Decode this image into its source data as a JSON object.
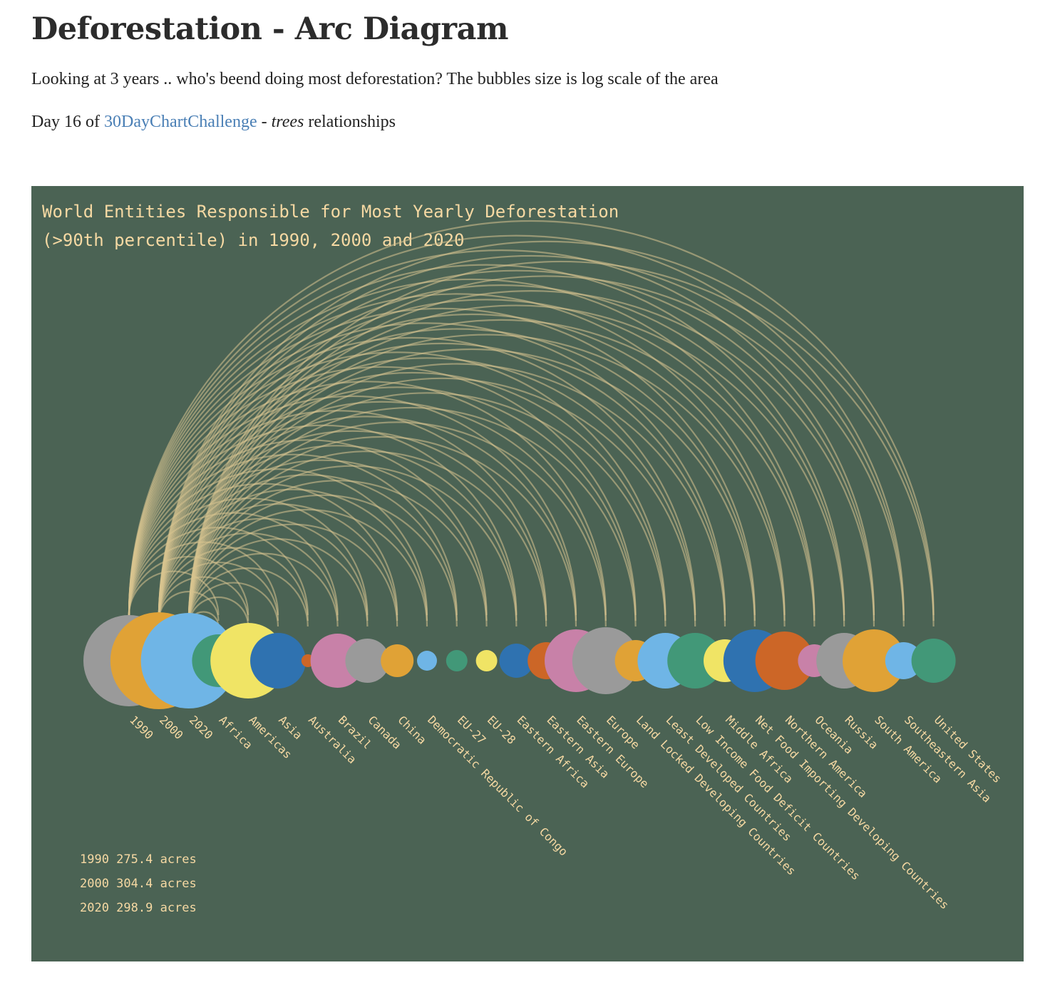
{
  "page": {
    "title": "Deforestation - Arc Diagram",
    "description": "Looking at 3 years .. who's beend doing most deforestation? The bubbles size is log scale of the area",
    "challenge_prefix": "Day 16 of ",
    "challenge_link": "30DayChartChallenge",
    "challenge_dash": " - ",
    "challenge_italic": "trees",
    "challenge_suffix": " relationships"
  },
  "colors": {
    "panel_bg": "#4b6354",
    "label": "#f6d9a3",
    "arc": "#d9c48f",
    "link": "#4a7fb5"
  },
  "chart_data": {
    "type": "arc",
    "title_line1": "World Entities Responsible for Most Yearly Deforestation",
    "title_line2": "(>90th percentile) in 1990, 2000 and 2020",
    "note": "The bubbles size is log scale of the area",
    "nodes": [
      {
        "name": "1990",
        "color": "#9a9a9a",
        "size": 64
      },
      {
        "name": "2000",
        "color": "#e0a236",
        "size": 68
      },
      {
        "name": "2020",
        "color": "#6fb5e6",
        "size": 67
      },
      {
        "name": "Africa",
        "color": "#429878",
        "size": 37
      },
      {
        "name": "Americas",
        "color": "#f0e465",
        "size": 53
      },
      {
        "name": "Asia",
        "color": "#2f72b0",
        "size": 39
      },
      {
        "name": "Australia",
        "color": "#cc6627",
        "size": 9
      },
      {
        "name": "Brazil",
        "color": "#c881a8",
        "size": 38
      },
      {
        "name": "Canada",
        "color": "#9a9a9a",
        "size": 31
      },
      {
        "name": "China",
        "color": "#e0a236",
        "size": 23
      },
      {
        "name": "Democratic Republic of Congo",
        "color": "#6fb5e6",
        "size": 14
      },
      {
        "name": "EU-27",
        "color": "#429878",
        "size": 15
      },
      {
        "name": "EU-28",
        "color": "#f0e465",
        "size": 15
      },
      {
        "name": "Eastern Africa",
        "color": "#2f72b0",
        "size": 24
      },
      {
        "name": "Eastern Asia",
        "color": "#cc6627",
        "size": 26
      },
      {
        "name": "Eastern Europe",
        "color": "#c881a8",
        "size": 44
      },
      {
        "name": "Europe",
        "color": "#9a9a9a",
        "size": 47
      },
      {
        "name": "Land Locked Developing Countries",
        "color": "#e0a236",
        "size": 29
      },
      {
        "name": "Least Developed Countries",
        "color": "#6fb5e6",
        "size": 39
      },
      {
        "name": "Low Income Food Deficit Countries",
        "color": "#429878",
        "size": 39
      },
      {
        "name": "Middle Africa",
        "color": "#f0e465",
        "size": 30
      },
      {
        "name": "Net Food Importing Developing Countries",
        "color": "#2f72b0",
        "size": 44
      },
      {
        "name": "Northern America",
        "color": "#cc6627",
        "size": 41
      },
      {
        "name": "Oceania",
        "color": "#c881a8",
        "size": 23
      },
      {
        "name": "Russia",
        "color": "#9a9a9a",
        "size": 39
      },
      {
        "name": "South America",
        "color": "#e0a236",
        "size": 44
      },
      {
        "name": "Southeastern Asia",
        "color": "#6fb5e6",
        "size": 26
      },
      {
        "name": "United States",
        "color": "#429878",
        "size": 31
      }
    ],
    "years": [
      "1990",
      "2000",
      "2020"
    ],
    "totals": [
      {
        "year": "1990",
        "value": 275.4,
        "unit": "acres",
        "text": "1990 275.4 acres"
      },
      {
        "year": "2000",
        "value": 304.4,
        "unit": "acres",
        "text": "2000 304.4 acres"
      },
      {
        "year": "2020",
        "value": 298.9,
        "unit": "acres",
        "text": "2020 298.9 acres"
      }
    ]
  }
}
